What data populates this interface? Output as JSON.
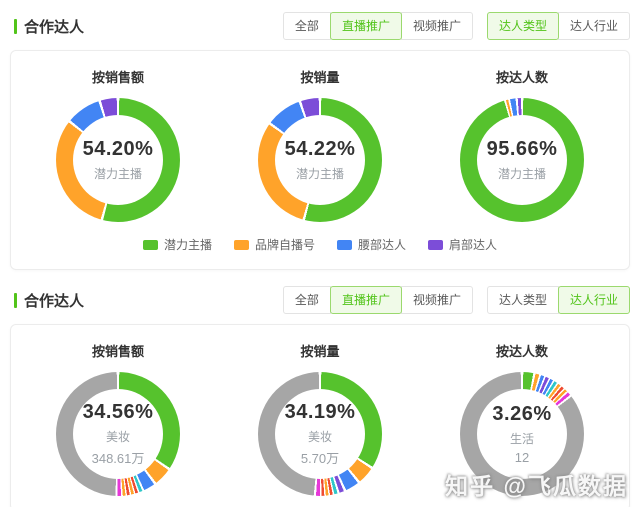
{
  "watermark": "知乎 @飞瓜数据",
  "colors": {
    "accent_green": "#52c41a",
    "chart_green": "#56c22d",
    "chart_orange": "#ffa32a",
    "chart_blue": "#4285f4",
    "chart_purple": "#7c4dd8",
    "chart_teal": "#2ec7c9",
    "chart_red": "#ef4b30",
    "chart_magenta": "#e637d8",
    "chart_gray": "#a6a6a6",
    "selected_btn_bg": "#f0fae8"
  },
  "sections": [
    {
      "title": "合作达人",
      "filter_groups": [
        {
          "buttons": [
            {
              "label": "全部",
              "selected": false
            },
            {
              "label": "直播推广",
              "selected": true
            },
            {
              "label": "视频推广",
              "selected": false
            }
          ]
        },
        {
          "buttons": [
            {
              "label": "达人类型",
              "selected": true
            },
            {
              "label": "达人行业",
              "selected": false
            }
          ]
        }
      ],
      "legend": [
        {
          "label": "潜力主播",
          "color": "#56c22d"
        },
        {
          "label": "品牌自播号",
          "color": "#ffa32a"
        },
        {
          "label": "腰部达人",
          "color": "#4285f4"
        },
        {
          "label": "肩部达人",
          "color": "#7c4dd8"
        }
      ]
    },
    {
      "title": "合作达人",
      "filter_groups": [
        {
          "buttons": [
            {
              "label": "全部",
              "selected": false
            },
            {
              "label": "直播推广",
              "selected": true
            },
            {
              "label": "视频推广",
              "selected": false
            }
          ]
        },
        {
          "buttons": [
            {
              "label": "达人类型",
              "selected": false
            },
            {
              "label": "达人行业",
              "selected": true
            }
          ]
        }
      ]
    }
  ],
  "chart_data": [
    {
      "type": "pie",
      "variant": "donut",
      "title": "按销售额",
      "center": {
        "percent": "54.20%",
        "label": "潜力主播"
      },
      "legend_position": "bottom",
      "segments": [
        {
          "name": "潜力主播",
          "value": 54.2,
          "color": "#56c22d"
        },
        {
          "name": "品牌自播号",
          "value": 31.5,
          "color": "#ffa32a"
        },
        {
          "name": "腰部达人",
          "value": 9.5,
          "color": "#4285f4"
        },
        {
          "name": "肩部达人",
          "value": 4.8,
          "color": "#7c4dd8"
        }
      ]
    },
    {
      "type": "pie",
      "variant": "donut",
      "title": "按销量",
      "center": {
        "percent": "54.22%",
        "label": "潜力主播"
      },
      "legend_position": "bottom",
      "segments": [
        {
          "name": "潜力主播",
          "value": 54.22,
          "color": "#56c22d"
        },
        {
          "name": "品牌自播号",
          "value": 30.8,
          "color": "#ffa32a"
        },
        {
          "name": "腰部达人",
          "value": 9.7,
          "color": "#4285f4"
        },
        {
          "name": "肩部达人",
          "value": 5.28,
          "color": "#7c4dd8"
        }
      ]
    },
    {
      "type": "pie",
      "variant": "donut",
      "title": "按达人数",
      "center": {
        "percent": "95.66%",
        "label": "潜力主播"
      },
      "legend_position": "bottom",
      "segments": [
        {
          "name": "潜力主播",
          "value": 95.66,
          "color": "#56c22d"
        },
        {
          "name": "品牌自播号",
          "value": 0.9,
          "color": "#ffa32a"
        },
        {
          "name": "腰部达人",
          "value": 2.1,
          "color": "#4285f4"
        },
        {
          "name": "肩部达人",
          "value": 1.34,
          "color": "#7c4dd8"
        }
      ]
    },
    {
      "type": "pie",
      "variant": "donut",
      "title": "按销售额",
      "center": {
        "percent": "34.56%",
        "label": "美妆",
        "value": "348.61万"
      },
      "segments": [
        {
          "name": "美妆",
          "value": 34.56,
          "color": "#56c22d"
        },
        {
          "name": "",
          "value": 5.2,
          "color": "#ffa32a"
        },
        {
          "name": "",
          "value": 3.6,
          "color": "#4285f4"
        },
        {
          "name": "",
          "value": 1.2,
          "color": "#2ec7c9"
        },
        {
          "name": "",
          "value": 1.1,
          "color": "#ef4b30"
        },
        {
          "name": "",
          "value": 1.1,
          "color": "#ffa32a"
        },
        {
          "name": "",
          "value": 1.1,
          "color": "#ef4b30"
        },
        {
          "name": "",
          "value": 1.1,
          "color": "#ffa32a"
        },
        {
          "name": "",
          "value": 1.4,
          "color": "#e637d8"
        },
        {
          "name": "",
          "value": 49.64,
          "color": "#a6a6a6"
        }
      ]
    },
    {
      "type": "pie",
      "variant": "donut",
      "title": "按销量",
      "center": {
        "percent": "34.19%",
        "label": "美妆",
        "value": "5.70万"
      },
      "segments": [
        {
          "name": "美妆",
          "value": 34.19,
          "color": "#56c22d"
        },
        {
          "name": "",
          "value": 5.0,
          "color": "#ffa32a"
        },
        {
          "name": "",
          "value": 4.2,
          "color": "#4285f4"
        },
        {
          "name": "",
          "value": 1.8,
          "color": "#7c4dd8"
        },
        {
          "name": "",
          "value": 1.3,
          "color": "#2ec7c9"
        },
        {
          "name": "",
          "value": 1.1,
          "color": "#ef4b30"
        },
        {
          "name": "",
          "value": 1.1,
          "color": "#ffa32a"
        },
        {
          "name": "",
          "value": 1.1,
          "color": "#ef4b30"
        },
        {
          "name": "",
          "value": 1.5,
          "color": "#e637d8"
        },
        {
          "name": "",
          "value": 48.71,
          "color": "#a6a6a6"
        }
      ]
    },
    {
      "type": "pie",
      "variant": "donut",
      "title": "按达人数",
      "center": {
        "percent": "3.26%",
        "label": "生活",
        "value": "12"
      },
      "segments": [
        {
          "name": "生活",
          "value": 3.26,
          "color": "#56c22d"
        },
        {
          "name": "",
          "value": 1.5,
          "color": "#ffa32a"
        },
        {
          "name": "",
          "value": 1.3,
          "color": "#4285f4"
        },
        {
          "name": "",
          "value": 1.3,
          "color": "#7c4dd8"
        },
        {
          "name": "",
          "value": 1.2,
          "color": "#4285f4"
        },
        {
          "name": "",
          "value": 1.2,
          "color": "#2ec7c9"
        },
        {
          "name": "",
          "value": 1.1,
          "color": "#ffa32a"
        },
        {
          "name": "",
          "value": 1.1,
          "color": "#ef4b30"
        },
        {
          "name": "",
          "value": 1.1,
          "color": "#ffa32a"
        },
        {
          "name": "",
          "value": 1.3,
          "color": "#e637d8"
        },
        {
          "name": "",
          "value": 85.64,
          "color": "#a6a6a6"
        }
      ]
    }
  ]
}
